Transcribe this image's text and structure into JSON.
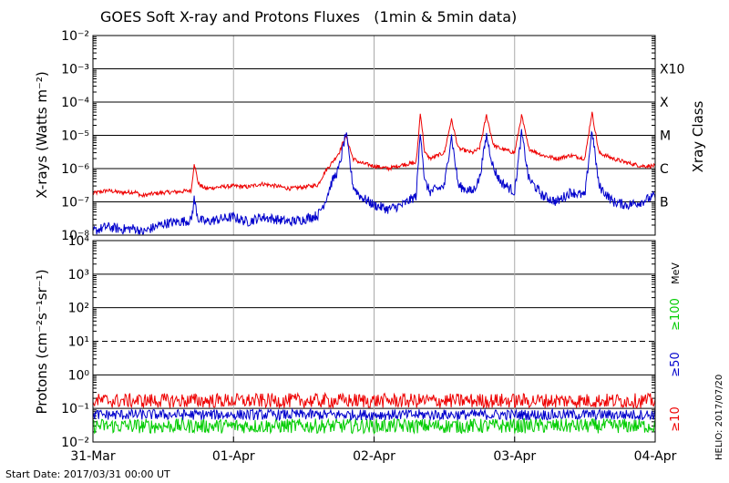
{
  "chart_data": {
    "type": "line",
    "title": "GOES Soft X-ray and Protons Fluxes   (1min & 5min data)",
    "x_ticks": [
      "31-Mar",
      "01-Apr",
      "02-Apr",
      "03-Apr",
      "04-Apr"
    ],
    "x_range": [
      "2017-03-31 00:00",
      "2017-04-04 00:00"
    ],
    "start_date_label": "Start Date: 2017/03/31 00:00 UT",
    "footer_note": "HELIO: 2017/07/20",
    "panels": [
      {
        "name": "xray",
        "ylabel": "X-rays (Watts m⁻²)",
        "y_scale": "log",
        "ylim": [
          1e-08,
          0.01
        ],
        "y_tick_labels": [
          "10⁻⁸",
          "10⁻⁷",
          "10⁻⁶",
          "10⁻⁵",
          "10⁻⁴",
          "10⁻³",
          "10⁻²"
        ],
        "right_axis_label": "Xray Class",
        "class_labels": [
          "B",
          "C",
          "M",
          "X",
          "X10"
        ],
        "series": [
          {
            "color": "#ee0000",
            "x_days": [
              0,
              0.1,
              0.2,
              0.3,
              0.35,
              0.4,
              0.5,
              0.6,
              0.7,
              0.72,
              0.75,
              0.8,
              0.9,
              1.0,
              1.1,
              1.2,
              1.3,
              1.4,
              1.5,
              1.6,
              1.65,
              1.7,
              1.75,
              1.8,
              1.85,
              1.9,
              2.0,
              2.1,
              2.2,
              2.3,
              2.33,
              2.36,
              2.4,
              2.5,
              2.55,
              2.6,
              2.7,
              2.75,
              2.8,
              2.85,
              2.9,
              3.0,
              3.05,
              3.1,
              3.2,
              3.3,
              3.4,
              3.5,
              3.55,
              3.6,
              3.7,
              3.8,
              3.9,
              4.0
            ],
            "y": [
              1.8e-07,
              2.2e-07,
              1.9e-07,
              2e-07,
              1.5e-07,
              1.7e-07,
              1.9e-07,
              2e-07,
              2.2e-07,
              1.5e-06,
              3.5e-07,
              2.5e-07,
              2.8e-07,
              3e-07,
              2.8e-07,
              3.5e-07,
              3e-07,
              2.5e-07,
              2.8e-07,
              3.2e-07,
              8e-07,
              1.5e-06,
              3e-06,
              1e-05,
              2e-06,
              1.5e-06,
              1.2e-06,
              1e-06,
              1.3e-06,
              1.5e-06,
              5e-05,
              3e-06,
              2e-06,
              3e-06,
              3e-05,
              4e-06,
              3e-06,
              4e-06,
              4e-05,
              5e-06,
              4e-06,
              3e-06,
              4e-05,
              4e-06,
              2.5e-06,
              2e-06,
              2.5e-06,
              2e-06,
              5e-05,
              3e-06,
              2e-06,
              1.5e-06,
              1.2e-06,
              1.2e-06
            ]
          },
          {
            "color": "#0000cc",
            "x_days": [
              0,
              0.1,
              0.2,
              0.3,
              0.35,
              0.4,
              0.5,
              0.6,
              0.7,
              0.72,
              0.75,
              0.8,
              0.9,
              1.0,
              1.1,
              1.2,
              1.3,
              1.4,
              1.5,
              1.6,
              1.65,
              1.7,
              1.75,
              1.8,
              1.85,
              1.9,
              2.0,
              2.1,
              2.2,
              2.3,
              2.33,
              2.36,
              2.4,
              2.5,
              2.55,
              2.6,
              2.7,
              2.75,
              2.8,
              2.85,
              2.9,
              3.0,
              3.05,
              3.1,
              3.2,
              3.3,
              3.4,
              3.5,
              3.55,
              3.6,
              3.7,
              3.8,
              3.9,
              4.0
            ],
            "y": [
              1.3e-08,
              1.8e-08,
              1.5e-08,
              1.6e-08,
              1.2e-08,
              1.5e-08,
              2.2e-08,
              2.5e-08,
              2.8e-08,
              1.2e-07,
              3e-08,
              2.5e-08,
              3e-08,
              3.5e-08,
              2.5e-08,
              3.5e-08,
              3e-08,
              2.5e-08,
              3e-08,
              4e-08,
              1e-07,
              4e-07,
              1e-06,
              1.2e-05,
              3e-07,
              1.5e-07,
              8e-08,
              6e-08,
              8e-08,
              1.5e-07,
              1.5e-05,
              4e-07,
              2e-07,
              3e-07,
              1e-05,
              3e-07,
              2e-07,
              5e-07,
              1e-05,
              1e-06,
              4e-07,
              2e-07,
              1.2e-05,
              5e-07,
              1.5e-07,
              1e-07,
              2e-07,
              1.5e-07,
              1.5e-05,
              3e-07,
              1e-07,
              8e-08,
              1e-07,
              1.5e-07
            ]
          }
        ]
      },
      {
        "name": "protons",
        "ylabel": "Protons (cm⁻²s⁻¹sr⁻¹)",
        "y_scale": "log",
        "ylim": [
          0.01,
          10000
        ],
        "y_tick_labels": [
          "10⁻²",
          "10⁻¹",
          "10⁰",
          "10¹",
          "10²",
          "10³",
          "10⁴"
        ],
        "threshold": 10,
        "unit_label": "MeV",
        "series": [
          {
            "name": "≥10",
            "color": "#ee0000",
            "level": 0.17
          },
          {
            "name": "≥50",
            "color": "#0000cc",
            "level": 0.065
          },
          {
            "name": "≥100",
            "color": "#00cc00",
            "level": 0.03
          }
        ]
      }
    ]
  }
}
